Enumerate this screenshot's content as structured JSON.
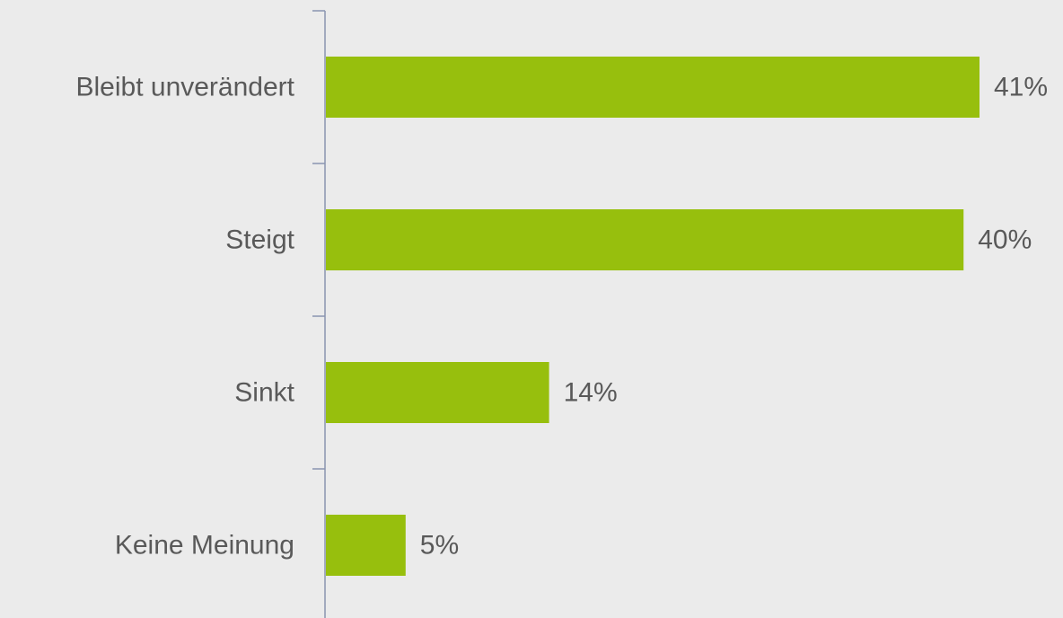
{
  "chart_data": {
    "type": "bar",
    "orientation": "horizontal",
    "categories": [
      "Bleibt unverändert",
      "Steigt",
      "Sinkt",
      "Keine Meinung"
    ],
    "values": [
      41,
      40,
      14,
      5
    ],
    "value_labels": [
      "41%",
      "40%",
      "14%",
      "5%"
    ],
    "unit": "%",
    "title": "",
    "xlabel": "",
    "ylabel": "",
    "xlim": [
      0,
      41
    ],
    "grid": false,
    "legend": "none",
    "colors": {
      "bar": "#97bf0d",
      "axis": "#8a94b0",
      "text": "#595959",
      "background": "#ebebeb"
    }
  }
}
